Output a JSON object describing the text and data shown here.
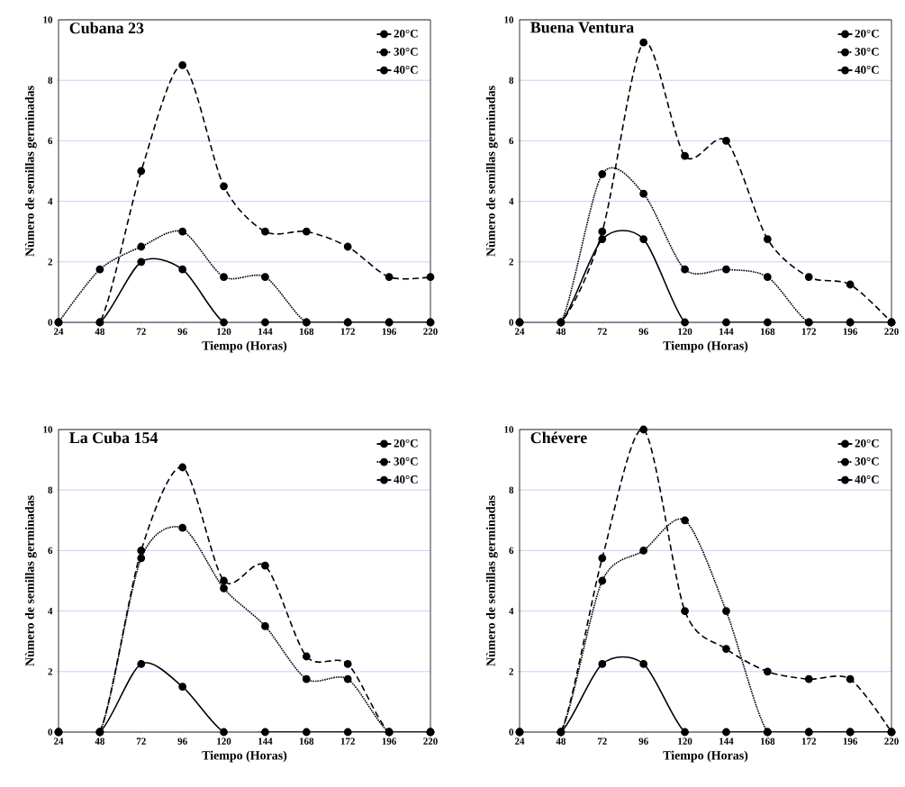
{
  "chart_data": [
    {
      "type": "line",
      "title": "Cubana 23",
      "xlabel": "Tiempo (Horas)",
      "ylabel": "Nùmero de semillas germinadas",
      "categories": [
        "24",
        "48",
        "72",
        "96",
        "120",
        "144",
        "168",
        "172",
        "196",
        "220"
      ],
      "ylim": [
        0,
        10
      ],
      "yticks": [
        0,
        2,
        4,
        6,
        8,
        10
      ],
      "grid": "y",
      "legend": "top right",
      "marker": "circle",
      "series": [
        {
          "name": "20°C",
          "color": "#000000",
          "line_style": "dashed",
          "values": [
            0,
            0,
            5,
            8.5,
            4.5,
            3,
            3,
            2.5,
            1.5,
            1.5
          ]
        },
        {
          "name": "30°C",
          "color": "#000000",
          "line_style": "dotted",
          "values": [
            0,
            1.75,
            2.5,
            3,
            1.5,
            1.5,
            0,
            0,
            0,
            0
          ]
        },
        {
          "name": "40°C",
          "color": "#000000",
          "line_style": "solid",
          "values": [
            0,
            0,
            2,
            1.75,
            0,
            0,
            0,
            0,
            0,
            0
          ]
        }
      ]
    },
    {
      "type": "line",
      "title": "Buena Ventura",
      "xlabel": "Tiempo (Horas)",
      "ylabel": "Nùmero de semillas germinadas",
      "categories": [
        "24",
        "48",
        "72",
        "96",
        "120",
        "144",
        "168",
        "172",
        "196",
        "220"
      ],
      "ylim": [
        0,
        10
      ],
      "yticks": [
        0,
        2,
        4,
        6,
        8,
        10
      ],
      "grid": "y",
      "legend": "top right",
      "marker": "circle",
      "series": [
        {
          "name": "20°C",
          "color": "#000000",
          "line_style": "dashed",
          "values": [
            0,
            0,
            3,
            9.25,
            5.5,
            6,
            2.75,
            1.5,
            1.25,
            0
          ]
        },
        {
          "name": "30°C",
          "color": "#000000",
          "line_style": "dotted",
          "values": [
            0,
            0,
            4.9,
            4.25,
            1.75,
            1.75,
            1.5,
            0,
            0,
            0
          ]
        },
        {
          "name": "40°C",
          "color": "#000000",
          "line_style": "solid",
          "values": [
            0,
            0,
            2.75,
            2.75,
            0,
            0,
            0,
            0,
            0,
            0
          ]
        }
      ]
    },
    {
      "type": "line",
      "title": "La Cuba 154",
      "xlabel": "Tiempo (Horas)",
      "ylabel": "Nùmero de semillas germinadas",
      "categories": [
        "24",
        "48",
        "72",
        "96",
        "120",
        "144",
        "168",
        "172",
        "196",
        "220"
      ],
      "ylim": [
        0,
        10
      ],
      "yticks": [
        0,
        2,
        4,
        6,
        8,
        10
      ],
      "grid": "y",
      "legend": "top right",
      "marker": "circle",
      "series": [
        {
          "name": "20°C",
          "color": "#000000",
          "line_style": "dashed",
          "values": [
            0,
            0,
            6,
            8.75,
            5,
            5.5,
            2.5,
            2.25,
            0,
            0
          ]
        },
        {
          "name": "30°C",
          "color": "#000000",
          "line_style": "dotted",
          "values": [
            0,
            0,
            5.75,
            6.75,
            4.75,
            3.5,
            1.75,
            1.75,
            0,
            0
          ]
        },
        {
          "name": "40°C",
          "color": "#000000",
          "line_style": "solid",
          "values": [
            0,
            0,
            2.25,
            1.5,
            0,
            0,
            0,
            0,
            0,
            0
          ]
        }
      ]
    },
    {
      "type": "line",
      "title": "Chévere",
      "xlabel": "Tiempo (Horas)",
      "ylabel": "Nùmero de semillas germinadas",
      "categories": [
        "24",
        "48",
        "72",
        "96",
        "120",
        "144",
        "168",
        "172",
        "196",
        "220"
      ],
      "ylim": [
        0,
        10
      ],
      "yticks": [
        0,
        2,
        4,
        6,
        8,
        10
      ],
      "grid": "y",
      "legend": "top right",
      "marker": "circle",
      "series": [
        {
          "name": "20°C",
          "color": "#000000",
          "line_style": "dashed",
          "values": [
            0,
            0,
            5.75,
            10,
            4,
            2.75,
            2,
            1.75,
            1.75,
            0
          ]
        },
        {
          "name": "30°C",
          "color": "#000000",
          "line_style": "dotted",
          "values": [
            0,
            0,
            5,
            6,
            7,
            4,
            0,
            0,
            0,
            0
          ]
        },
        {
          "name": "40°C",
          "color": "#000000",
          "line_style": "solid",
          "values": [
            0,
            0,
            2.25,
            2.25,
            0,
            0,
            0,
            0,
            0,
            0
          ]
        }
      ]
    }
  ]
}
